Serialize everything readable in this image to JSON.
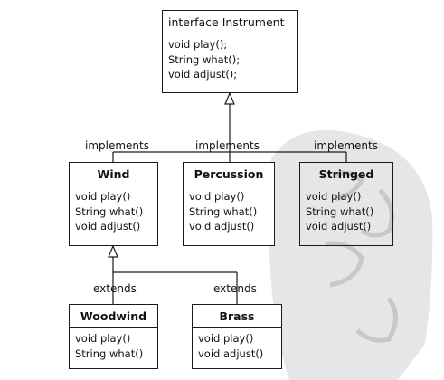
{
  "interface": {
    "title": "interface Instrument",
    "methods": [
      "void play();",
      "String what();",
      "void adjust();"
    ]
  },
  "wind": {
    "title": "Wind",
    "methods": [
      "void play()",
      "String what()",
      "void adjust()"
    ]
  },
  "percussion": {
    "title": "Percussion",
    "methods": [
      "void play()",
      "String what()",
      "void adjust()"
    ]
  },
  "stringed": {
    "title": "Stringed",
    "methods": [
      "void play()",
      "String what()",
      "void adjust()"
    ]
  },
  "woodwind": {
    "title": "Woodwind",
    "methods": [
      "void play()",
      "String what()"
    ]
  },
  "brass": {
    "title": "Brass",
    "methods": [
      "void play()",
      "void adjust()"
    ]
  },
  "labels": {
    "implements_wind": "implements",
    "implements_percussion": "implements",
    "implements_stringed": "implements",
    "extends_woodwind": "extends",
    "extends_brass": "extends"
  },
  "colors": {
    "line": "#1a1a1a",
    "stamp": "#e6e6e6",
    "stamp_text": "#c8c8c8"
  }
}
